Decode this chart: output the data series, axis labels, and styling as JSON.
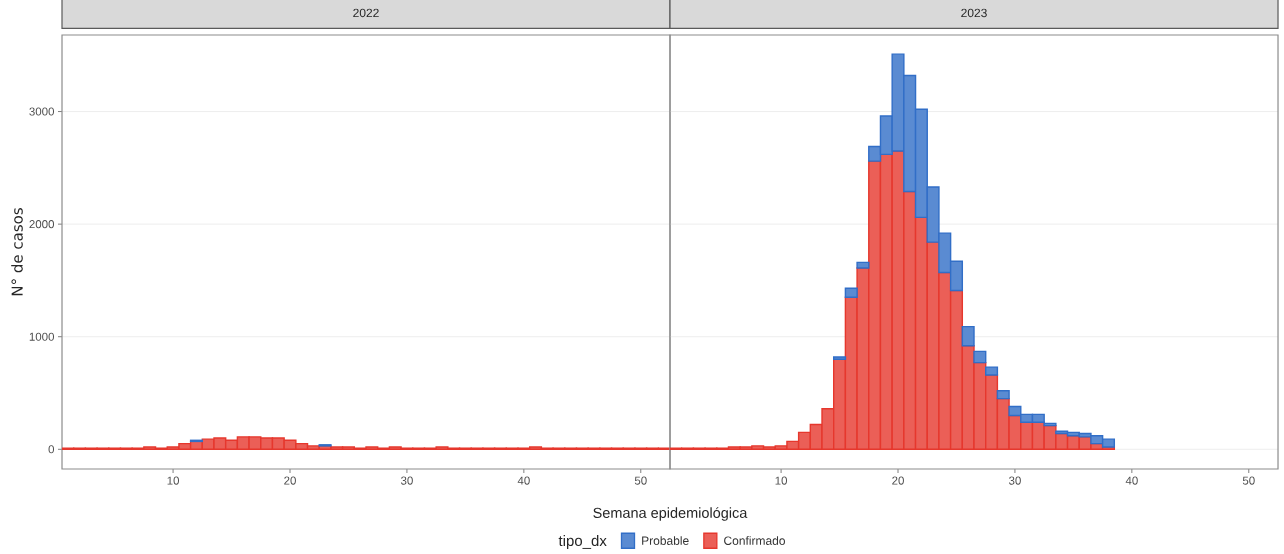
{
  "chart_data": [
    {
      "type": "bar",
      "title": "2022",
      "xlabel": "Semana epidemiológica",
      "ylabel": "N° de casos",
      "legend_title": "tipo_dx",
      "x": [
        1,
        2,
        3,
        4,
        5,
        6,
        7,
        8,
        9,
        10,
        11,
        12,
        13,
        14,
        15,
        16,
        17,
        18,
        19,
        20,
        21,
        22,
        23,
        24,
        25,
        26,
        27,
        28,
        29,
        30,
        31,
        32,
        33,
        34,
        35,
        36,
        37,
        38,
        39,
        40,
        41,
        42,
        43,
        44,
        45,
        46,
        47,
        48,
        49,
        50,
        51,
        52
      ],
      "xlim": [
        0.5,
        52.5
      ],
      "xticks": [
        10,
        20,
        30,
        40,
        50
      ],
      "ylim": [
        -175,
        3680
      ],
      "yticks": [
        0,
        1000,
        2000,
        3000
      ],
      "grid": "y",
      "legend": "bottom",
      "stacked": true,
      "series": [
        {
          "name": "Confirmado",
          "color": "#eb5f57",
          "values": [
            10,
            10,
            10,
            10,
            10,
            10,
            10,
            20,
            10,
            20,
            50,
            70,
            90,
            100,
            80,
            110,
            110,
            100,
            100,
            80,
            50,
            30,
            30,
            20,
            20,
            10,
            20,
            10,
            20,
            10,
            10,
            10,
            20,
            10,
            10,
            10,
            10,
            10,
            10,
            10,
            20,
            10,
            10,
            10,
            10,
            10,
            10,
            10,
            10,
            10,
            10,
            10
          ]
        },
        {
          "name": "Probable",
          "color": "#5a8bd2",
          "values": [
            null,
            null,
            null,
            null,
            null,
            null,
            null,
            null,
            null,
            null,
            null,
            10,
            null,
            null,
            null,
            null,
            null,
            null,
            null,
            null,
            null,
            null,
            10,
            null,
            null,
            null,
            null,
            null,
            null,
            null,
            null,
            null,
            null,
            null,
            null,
            null,
            null,
            null,
            null,
            null,
            null,
            null,
            null,
            null,
            null,
            null,
            null,
            null,
            null,
            null,
            null,
            null
          ]
        }
      ]
    },
    {
      "type": "bar",
      "title": "2023",
      "x": [
        1,
        2,
        3,
        4,
        5,
        6,
        7,
        8,
        9,
        10,
        11,
        12,
        13,
        14,
        15,
        16,
        17,
        18,
        19,
        20,
        21,
        22,
        23,
        24,
        25,
        26,
        27,
        28,
        29,
        30,
        31,
        32,
        33,
        34,
        35,
        36,
        37,
        38
      ],
      "xlim": [
        0.5,
        52.5
      ],
      "xticks": [
        10,
        20,
        30,
        40,
        50
      ],
      "ylim": [
        -175,
        3680
      ],
      "yticks": [
        0,
        1000,
        2000,
        3000
      ],
      "grid": "y",
      "stacked": true,
      "tick_labels": "x",
      "series": [
        {
          "color": "#eb5f57",
          "values": [
            10,
            10,
            10,
            10,
            10,
            20,
            20,
            30,
            20,
            30,
            70,
            150,
            220,
            360,
            800,
            1350,
            1610,
            2560,
            2620,
            2650,
            2290,
            2060,
            1840,
            1570,
            1410,
            920,
            770,
            660,
            450,
            300,
            240,
            240,
            210,
            140,
            120,
            110,
            50,
            20
          ]
        },
        {
          "color": "#5a8bd2",
          "values": [
            null,
            null,
            null,
            null,
            null,
            null,
            null,
            null,
            null,
            null,
            null,
            null,
            null,
            null,
            20,
            80,
            50,
            130,
            340,
            860,
            1030,
            960,
            490,
            350,
            260,
            170,
            100,
            70,
            70,
            80,
            70,
            70,
            20,
            20,
            30,
            30,
            70,
            70
          ]
        }
      ]
    }
  ]
}
